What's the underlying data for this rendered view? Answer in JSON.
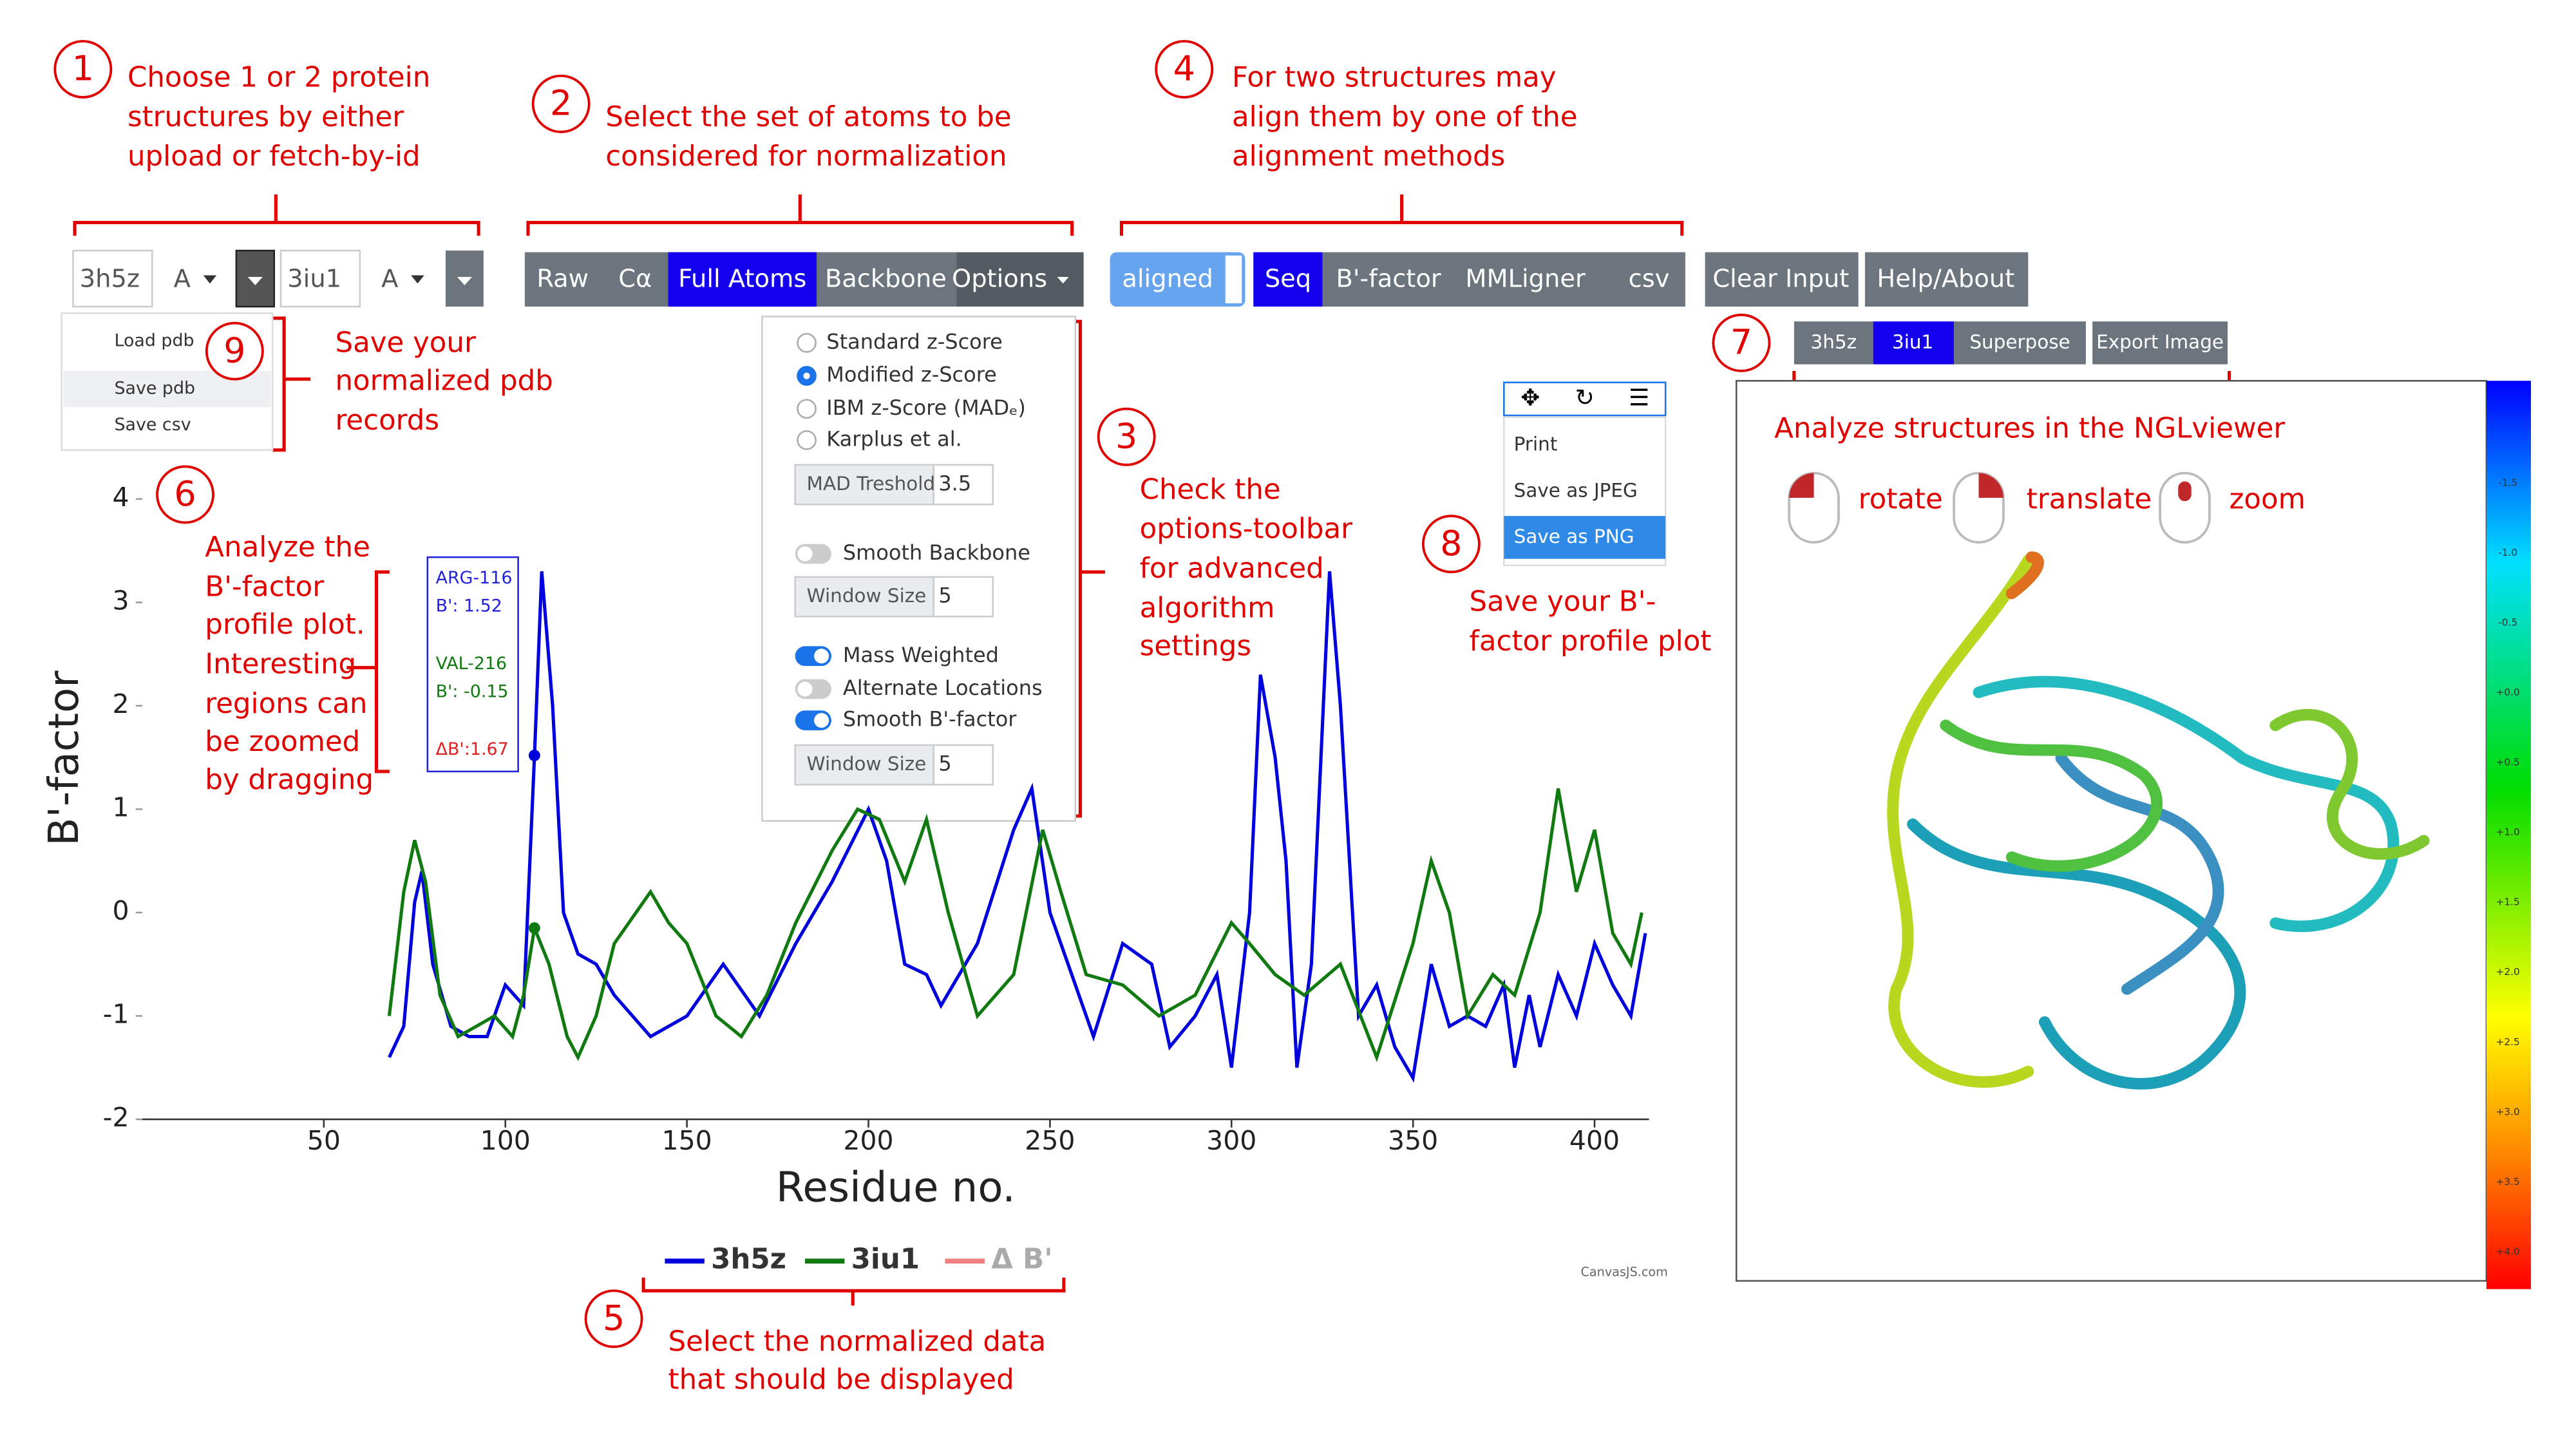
{
  "annotations": [
    {
      "number": "1",
      "lines": [
        "Choose 1 or 2 protein",
        "structures by either",
        "upload or fetch-by-id"
      ]
    },
    {
      "number": "2",
      "lines": [
        "Select the set of atoms to be",
        "considered for normalization"
      ]
    },
    {
      "number": "3",
      "lines": [
        "Check the",
        "options-toolbar",
        "for advanced",
        "algorithm",
        "settings"
      ]
    },
    {
      "number": "4",
      "lines": [
        "For two structures may",
        "align them by one of the",
        "alignment methods"
      ]
    },
    {
      "number": "5",
      "lines": [
        "Select the normalized data",
        "that should be displayed"
      ]
    },
    {
      "number": "6",
      "lines": [
        "Analyze the",
        "B'-factor",
        "profile plot.",
        "Interesting",
        "regions can",
        "be zoomed",
        "by dragging"
      ]
    },
    {
      "number": "7",
      "lines": [
        "Analyze structures in the NGLviewer"
      ]
    },
    {
      "number": "8",
      "lines": [
        "Save your B'-",
        "factor profile plot"
      ]
    },
    {
      "number": "9",
      "lines": [
        "Save your",
        "normalized pdb",
        "records"
      ]
    }
  ],
  "structure_inputs": [
    "3h5z",
    "A",
    "3iu1",
    "A"
  ],
  "atom_buttons": [
    "Raw",
    "Cα",
    "Full Atoms",
    "Backbone",
    "Options"
  ],
  "align_buttons": [
    "aligned",
    "Seq",
    "B'-factor",
    "MMLigner",
    "csv"
  ],
  "other_buttons": [
    "Clear Input",
    "Help/About"
  ],
  "file_menu": [
    "Load pdb",
    "Save pdb",
    "Save csv"
  ],
  "options_panel": {
    "radios": [
      "Standard z-Score",
      "Modified z-Score",
      "IBM z-Score (MADₑ)",
      "Karplus et al."
    ],
    "mad_label": "MAD Treshold",
    "mad_value": "3.5",
    "smooth_backbone": "Smooth Backbone",
    "window_label_1": "Window Size",
    "window_value_1": "5",
    "toggles": [
      "Mass Weighted",
      "Alternate Locations",
      "Smooth B'-factor"
    ],
    "window_label_2": "Window Size",
    "window_value_2": "5"
  },
  "tooltip": [
    "ARG-116",
    "B': 1.52",
    "VAL-216",
    "B': -0.15",
    "ΔB':1.67"
  ],
  "export_menu": [
    "Print",
    "Save as JPEG",
    "Save as PNG"
  ],
  "viewer": {
    "tabs": [
      "3h5z",
      "3iu1",
      "Superpose",
      "Export Image"
    ],
    "mouse": [
      "rotate",
      "translate",
      "zoom"
    ],
    "colorbar": [
      "-1.5",
      "-1.0",
      "-0.5",
      "+0.0",
      "+0.5",
      "+1.0",
      "+1.5",
      "+2.0",
      "+2.5",
      "+3.0",
      "+3.5",
      "+4.0"
    ]
  },
  "chart_data": {
    "type": "line",
    "x_label": "Residue no.",
    "y_label": "B'-factor",
    "xlim": [
      0,
      415
    ],
    "ylim": [
      -2,
      5
    ],
    "xticks": [
      50,
      100,
      150,
      200,
      250,
      300,
      350,
      400
    ],
    "yticks": [
      -2,
      -1,
      0,
      1,
      2,
      3,
      4
    ],
    "credit": "CanvasJS.com",
    "series": [
      {
        "name": "3h5z",
        "color": "#0000dd",
        "x": [
          68,
          72,
          75,
          77,
          80,
          85,
          90,
          95,
          100,
          105,
          108,
          110,
          113,
          116,
          120,
          125,
          130,
          140,
          150,
          160,
          170,
          180,
          190,
          200,
          205,
          210,
          216,
          220,
          230,
          240,
          245,
          250,
          255,
          262,
          270,
          278,
          283,
          290,
          296,
          300,
          305,
          308,
          312,
          315,
          318,
          322,
          327,
          330,
          335,
          340,
          345,
          350,
          355,
          360,
          365,
          370,
          375,
          378,
          382,
          385,
          390,
          395,
          400,
          405,
          410,
          414
        ],
        "values": [
          -1.4,
          -1.1,
          0.1,
          0.4,
          -0.5,
          -1.1,
          -1.2,
          -1.2,
          -0.7,
          -0.9,
          1.52,
          3.3,
          2.0,
          0,
          -0.4,
          -0.5,
          -0.8,
          -1.2,
          -1.0,
          -0.5,
          -1.0,
          -0.3,
          0.3,
          1.0,
          0.5,
          -0.5,
          -0.6,
          -0.9,
          -0.3,
          0.8,
          1.2,
          0,
          -0.5,
          -1.2,
          -0.3,
          -0.5,
          -1.3,
          -1.0,
          -0.6,
          -1.5,
          0.0,
          2.3,
          1.5,
          0.5,
          -1.5,
          -0.5,
          3.3,
          2.0,
          -1.0,
          -0.7,
          -1.3,
          -1.6,
          -0.5,
          -1.1,
          -1.0,
          -1.1,
          -0.7,
          -1.5,
          -0.8,
          -1.3,
          -0.6,
          -1.0,
          -0.3,
          -0.7,
          -1.0,
          -0.2
        ]
      },
      {
        "name": "3iu1",
        "color": "#107a10",
        "x": [
          68,
          72,
          75,
          78,
          82,
          87,
          92,
          97,
          102,
          105,
          108,
          112,
          117,
          120,
          125,
          130,
          140,
          145,
          150,
          158,
          165,
          172,
          180,
          190,
          197,
          203,
          210,
          216,
          222,
          230,
          240,
          248,
          253,
          260,
          270,
          280,
          290,
          300,
          305,
          312,
          320,
          330,
          340,
          350,
          355,
          360,
          365,
          372,
          378,
          385,
          390,
          395,
          400,
          405,
          410,
          413
        ],
        "values": [
          -1.0,
          0.2,
          0.7,
          0.3,
          -0.8,
          -1.2,
          -1.1,
          -1.0,
          -1.2,
          -0.8,
          -0.15,
          -0.5,
          -1.2,
          -1.4,
          -1.0,
          -0.3,
          0.2,
          -0.1,
          -0.3,
          -1.0,
          -1.2,
          -0.8,
          -0.1,
          0.6,
          1.0,
          0.9,
          0.3,
          0.9,
          0.0,
          -1.0,
          -0.6,
          0.8,
          0.2,
          -0.6,
          -0.7,
          -1.0,
          -0.8,
          -0.1,
          -0.3,
          -0.6,
          -0.8,
          -0.5,
          -1.4,
          -0.3,
          0.5,
          0.0,
          -1.0,
          -0.6,
          -0.8,
          0.0,
          1.2,
          0.2,
          0.8,
          -0.2,
          -0.5,
          0.0
        ]
      },
      {
        "name": "Δ B'",
        "color": "#f08080",
        "hidden": true,
        "x": [],
        "values": []
      }
    ]
  }
}
